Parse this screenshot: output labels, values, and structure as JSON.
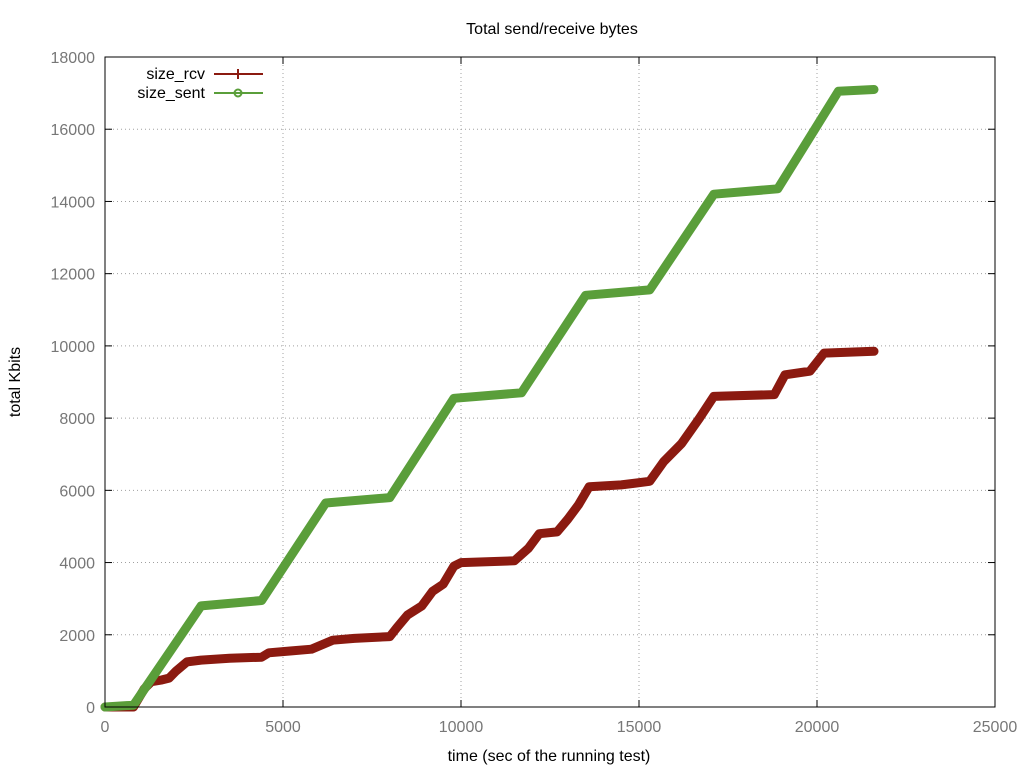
{
  "chart_data": {
    "type": "line",
    "title": "Total send/receive bytes",
    "xlabel": "time (sec of the running test)",
    "ylabel": "total Kbits",
    "xlim": [
      0,
      25000
    ],
    "ylim": [
      0,
      18000
    ],
    "xticks": [
      0,
      5000,
      10000,
      15000,
      20000,
      25000
    ],
    "yticks": [
      0,
      2000,
      4000,
      6000,
      8000,
      10000,
      12000,
      14000,
      16000,
      18000
    ],
    "grid": true,
    "legend_position": "top-left",
    "series": [
      {
        "name": "size_rcv",
        "color": "#8b1a10",
        "marker": "plus",
        "points": [
          [
            0,
            0
          ],
          [
            800,
            0
          ],
          [
            1100,
            500
          ],
          [
            1300,
            700
          ],
          [
            1600,
            750
          ],
          [
            1800,
            800
          ],
          [
            2000,
            1000
          ],
          [
            2300,
            1250
          ],
          [
            2700,
            1300
          ],
          [
            3500,
            1350
          ],
          [
            4400,
            1380
          ],
          [
            4600,
            1500
          ],
          [
            5200,
            1550
          ],
          [
            5800,
            1600
          ],
          [
            6400,
            1850
          ],
          [
            7000,
            1900
          ],
          [
            8000,
            1950
          ],
          [
            8200,
            2200
          ],
          [
            8500,
            2550
          ],
          [
            8900,
            2800
          ],
          [
            9200,
            3200
          ],
          [
            9500,
            3400
          ],
          [
            9800,
            3900
          ],
          [
            10000,
            4000
          ],
          [
            11500,
            4050
          ],
          [
            11900,
            4400
          ],
          [
            12200,
            4800
          ],
          [
            12700,
            4850
          ],
          [
            13000,
            5200
          ],
          [
            13300,
            5600
          ],
          [
            13600,
            6100
          ],
          [
            14500,
            6150
          ],
          [
            15300,
            6250
          ],
          [
            15700,
            6800
          ],
          [
            16200,
            7300
          ],
          [
            16700,
            8000
          ],
          [
            17100,
            8600
          ],
          [
            18800,
            8650
          ],
          [
            19100,
            9200
          ],
          [
            19800,
            9300
          ],
          [
            20200,
            9800
          ],
          [
            21600,
            9850
          ]
        ]
      },
      {
        "name": "size_sent",
        "color": "#5a9e3a",
        "marker": "circle",
        "points": [
          [
            0,
            0
          ],
          [
            800,
            50
          ],
          [
            2700,
            2800
          ],
          [
            4400,
            2950
          ],
          [
            6200,
            5650
          ],
          [
            8000,
            5800
          ],
          [
            9800,
            8550
          ],
          [
            11700,
            8700
          ],
          [
            13500,
            11400
          ],
          [
            15300,
            11550
          ],
          [
            17100,
            14200
          ],
          [
            18900,
            14350
          ],
          [
            20600,
            17050
          ],
          [
            21600,
            17100
          ]
        ]
      }
    ]
  }
}
